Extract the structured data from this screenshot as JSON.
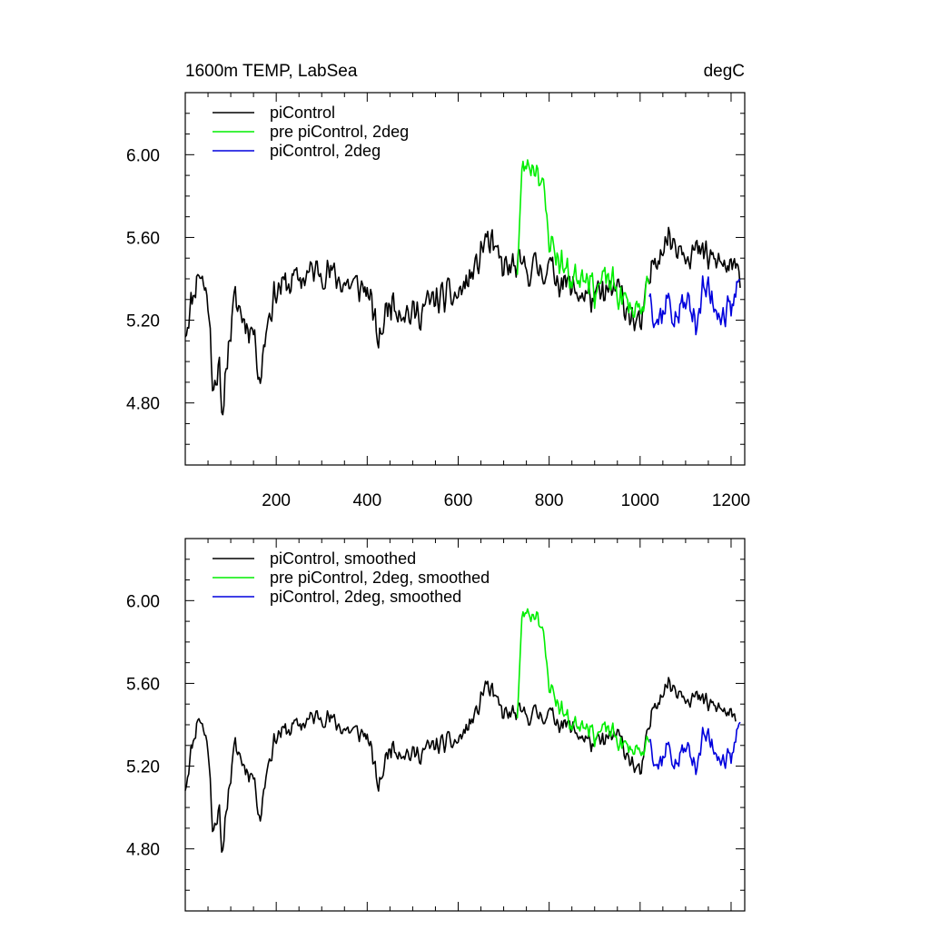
{
  "chart_data": [
    {
      "type": "line",
      "title_left": "1600m TEMP, LabSea",
      "title_right": "degC",
      "xlim": [
        0,
        1230
      ],
      "ylim": [
        4.5,
        6.3
      ],
      "x_ticks": [
        200,
        400,
        600,
        800,
        1000,
        1200
      ],
      "x_tick_labels": [
        "200",
        "400",
        "600",
        "800",
        "1000",
        "1200"
      ],
      "y_ticks": [
        4.8,
        5.2,
        5.6,
        6.0
      ],
      "y_tick_labels": [
        "4.80",
        "5.20",
        "5.60",
        "6.00"
      ],
      "legend_position": "top-left",
      "series": [
        {
          "name": "piControl",
          "color": "#000000",
          "x_start": 0,
          "x_end": 1220,
          "seed": 11,
          "noise": 0.1,
          "knots": [
            [
              0,
              5.15
            ],
            [
              15,
              5.3
            ],
            [
              30,
              5.45
            ],
            [
              50,
              5.3
            ],
            [
              60,
              4.92
            ],
            [
              75,
              4.95
            ],
            [
              80,
              4.68
            ],
            [
              90,
              5.0
            ],
            [
              110,
              5.3
            ],
            [
              130,
              5.2
            ],
            [
              150,
              5.15
            ],
            [
              165,
              4.92
            ],
            [
              180,
              5.2
            ],
            [
              200,
              5.35
            ],
            [
              250,
              5.4
            ],
            [
              300,
              5.45
            ],
            [
              350,
              5.38
            ],
            [
              400,
              5.35
            ],
            [
              425,
              5.1
            ],
            [
              450,
              5.3
            ],
            [
              500,
              5.22
            ],
            [
              550,
              5.3
            ],
            [
              600,
              5.32
            ],
            [
              640,
              5.45
            ],
            [
              660,
              5.6
            ],
            [
              700,
              5.45
            ],
            [
              750,
              5.45
            ],
            [
              800,
              5.45
            ],
            [
              850,
              5.35
            ],
            [
              900,
              5.3
            ],
            [
              950,
              5.35
            ],
            [
              1000,
              5.15
            ],
            [
              1030,
              5.5
            ],
            [
              1060,
              5.6
            ],
            [
              1100,
              5.55
            ],
            [
              1150,
              5.5
            ],
            [
              1200,
              5.45
            ],
            [
              1220,
              5.4
            ]
          ]
        },
        {
          "name": "pre piControl, 2deg",
          "color": "#00ee00",
          "x_start": 730,
          "x_end": 1020,
          "seed": 23,
          "noise": 0.1,
          "knots": [
            [
              730,
              5.45
            ],
            [
              740,
              5.9
            ],
            [
              750,
              5.95
            ],
            [
              760,
              5.95
            ],
            [
              775,
              5.95
            ],
            [
              785,
              5.85
            ],
            [
              800,
              5.6
            ],
            [
              820,
              5.5
            ],
            [
              850,
              5.4
            ],
            [
              880,
              5.45
            ],
            [
              900,
              5.35
            ],
            [
              930,
              5.4
            ],
            [
              960,
              5.3
            ],
            [
              990,
              5.25
            ],
            [
              1020,
              5.35
            ]
          ]
        },
        {
          "name": "piControl, 2deg",
          "color": "#0000dd",
          "x_start": 1020,
          "x_end": 1220,
          "seed": 37,
          "noise": 0.12,
          "knots": [
            [
              1020,
              5.35
            ],
            [
              1040,
              5.2
            ],
            [
              1060,
              5.3
            ],
            [
              1080,
              5.2
            ],
            [
              1100,
              5.3
            ],
            [
              1120,
              5.2
            ],
            [
              1140,
              5.35
            ],
            [
              1160,
              5.3
            ],
            [
              1180,
              5.25
            ],
            [
              1200,
              5.2
            ],
            [
              1220,
              5.45
            ]
          ]
        }
      ]
    },
    {
      "type": "line",
      "xlim": [
        0,
        1230
      ],
      "ylim": [
        4.5,
        6.3
      ],
      "x_ticks": [
        200,
        400,
        600,
        800,
        1000,
        1200
      ],
      "y_ticks": [
        4.8,
        5.2,
        5.6,
        6.0
      ],
      "y_tick_labels": [
        "4.80",
        "5.20",
        "5.60",
        "6.00"
      ],
      "legend_position": "top-left",
      "series": [
        {
          "name": "piControl, smoothed",
          "color": "#000000",
          "x_start": 0,
          "x_end": 1210,
          "seed": 11,
          "noise": 0.06,
          "knots": [
            [
              0,
              5.1
            ],
            [
              15,
              5.3
            ],
            [
              30,
              5.45
            ],
            [
              50,
              5.3
            ],
            [
              60,
              4.92
            ],
            [
              75,
              4.97
            ],
            [
              80,
              4.74
            ],
            [
              90,
              5.0
            ],
            [
              110,
              5.3
            ],
            [
              130,
              5.2
            ],
            [
              150,
              5.15
            ],
            [
              165,
              4.95
            ],
            [
              180,
              5.2
            ],
            [
              200,
              5.35
            ],
            [
              250,
              5.4
            ],
            [
              300,
              5.45
            ],
            [
              350,
              5.38
            ],
            [
              400,
              5.35
            ],
            [
              425,
              5.1
            ],
            [
              450,
              5.3
            ],
            [
              500,
              5.25
            ],
            [
              550,
              5.3
            ],
            [
              600,
              5.32
            ],
            [
              640,
              5.45
            ],
            [
              660,
              5.6
            ],
            [
              700,
              5.45
            ],
            [
              750,
              5.45
            ],
            [
              800,
              5.45
            ],
            [
              850,
              5.38
            ],
            [
              900,
              5.3
            ],
            [
              950,
              5.35
            ],
            [
              1000,
              5.15
            ],
            [
              1030,
              5.5
            ],
            [
              1060,
              5.6
            ],
            [
              1100,
              5.55
            ],
            [
              1150,
              5.5
            ],
            [
              1200,
              5.45
            ],
            [
              1210,
              5.4
            ]
          ]
        },
        {
          "name": "pre piControl, 2deg, smoothed",
          "color": "#00ee00",
          "x_start": 730,
          "x_end": 1020,
          "seed": 23,
          "noise": 0.06,
          "knots": [
            [
              730,
              5.45
            ],
            [
              740,
              5.9
            ],
            [
              750,
              5.95
            ],
            [
              760,
              5.93
            ],
            [
              775,
              5.95
            ],
            [
              785,
              5.85
            ],
            [
              800,
              5.6
            ],
            [
              820,
              5.5
            ],
            [
              850,
              5.4
            ],
            [
              880,
              5.42
            ],
            [
              900,
              5.35
            ],
            [
              930,
              5.38
            ],
            [
              960,
              5.3
            ],
            [
              990,
              5.28
            ],
            [
              1020,
              5.3
            ]
          ]
        },
        {
          "name": "piControl, 2deg, smoothed",
          "color": "#0000dd",
          "x_start": 1020,
          "x_end": 1220,
          "seed": 37,
          "noise": 0.08,
          "knots": [
            [
              1020,
              5.35
            ],
            [
              1040,
              5.2
            ],
            [
              1060,
              5.3
            ],
            [
              1080,
              5.2
            ],
            [
              1100,
              5.3
            ],
            [
              1120,
              5.2
            ],
            [
              1140,
              5.35
            ],
            [
              1160,
              5.3
            ],
            [
              1180,
              5.25
            ],
            [
              1200,
              5.2
            ],
            [
              1220,
              5.45
            ]
          ]
        }
      ]
    }
  ]
}
